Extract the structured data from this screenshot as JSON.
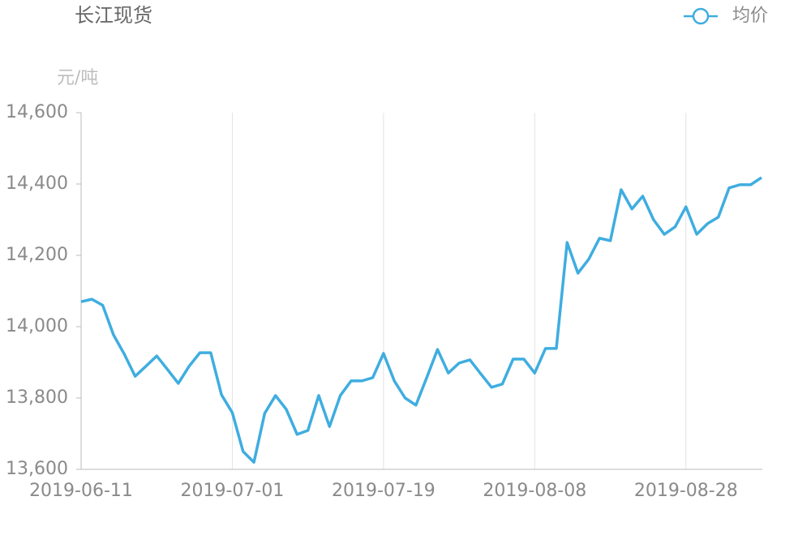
{
  "chart_data": {
    "type": "line",
    "title": "长江现货",
    "y_label": "元/吨",
    "categories": [
      "2019-06-11",
      null,
      null,
      null,
      null,
      null,
      null,
      null,
      null,
      null,
      null,
      null,
      null,
      null,
      "2019-07-01",
      null,
      null,
      null,
      null,
      null,
      null,
      null,
      null,
      null,
      null,
      null,
      null,
      null,
      "2019-07-19",
      null,
      null,
      null,
      null,
      null,
      null,
      null,
      null,
      null,
      null,
      null,
      null,
      null,
      "2019-08-08",
      null,
      null,
      null,
      null,
      null,
      null,
      null,
      null,
      null,
      null,
      null,
      null,
      null,
      "2019-08-28",
      null,
      null,
      null,
      null,
      null,
      null,
      null
    ],
    "series": [
      {
        "name": "均价",
        "color": "#3fade0",
        "values": [
          14070,
          14077,
          14060,
          13977,
          13923,
          13861,
          13889,
          13918,
          13880,
          13841,
          13889,
          13927,
          13927,
          13809,
          13759,
          13650,
          13620,
          13757,
          13807,
          13768,
          13698,
          13709,
          13807,
          13720,
          13807,
          13848,
          13848,
          13857,
          13925,
          13848,
          13800,
          13780,
          13857,
          13936,
          13870,
          13898,
          13907,
          13868,
          13830,
          13839,
          13909,
          13909,
          13870,
          13939,
          13939,
          14236,
          14150,
          14189,
          14248,
          14241,
          14384,
          14330,
          14366,
          14300,
          14259,
          14280,
          14336,
          14259,
          14289,
          14307,
          14389,
          14398,
          14398,
          14418
        ]
      }
    ],
    "ylim": [
      13600,
      14600
    ],
    "yticks": [
      {
        "value": 13600,
        "label": "13,600"
      },
      {
        "value": 13800,
        "label": "13,800"
      },
      {
        "value": 14000,
        "label": "14,000"
      },
      {
        "value": 14200,
        "label": "14,200"
      },
      {
        "value": 14400,
        "label": "14,400"
      },
      {
        "value": 14600,
        "label": "14,600"
      }
    ],
    "grid": true,
    "legend": "top-right"
  }
}
